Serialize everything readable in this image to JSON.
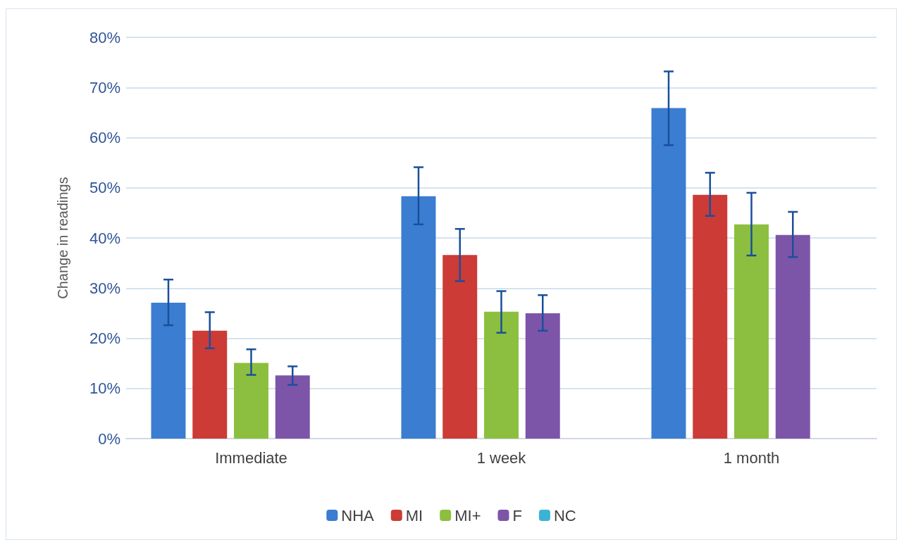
{
  "chart_data": {
    "type": "bar",
    "ylabel": "Change in readings",
    "categories": [
      "Immediate",
      "1 week",
      "1 month"
    ],
    "series": [
      {
        "name": "NHA",
        "color": "#3a7dd1",
        "values": [
          27.1,
          48.3,
          65.9
        ],
        "errors": [
          [
            22.6,
            31.7
          ],
          [
            42.7,
            54.1
          ],
          [
            58.5,
            73.2
          ]
        ]
      },
      {
        "name": "MI",
        "color": "#cc3b36",
        "values": [
          21.5,
          36.6,
          48.6
        ],
        "errors": [
          [
            18,
            25.2
          ],
          [
            31.4,
            41.8
          ],
          [
            44.4,
            53
          ]
        ]
      },
      {
        "name": "MI+",
        "color": "#8cbf3f",
        "values": [
          15.1,
          25.3,
          42.7
        ],
        "errors": [
          [
            12.7,
            17.8
          ],
          [
            21.1,
            29.4
          ],
          [
            36.5,
            49
          ]
        ]
      },
      {
        "name": "F",
        "color": "#7d55a8",
        "values": [
          12.6,
          25,
          40.6
        ],
        "errors": [
          [
            10.7,
            14.4
          ],
          [
            21.5,
            28.6
          ],
          [
            36.2,
            45.2
          ]
        ]
      },
      {
        "name": "NC",
        "color": "#3bb3d4",
        "values": [
          null,
          null,
          null
        ]
      }
    ],
    "ylim": [
      0,
      80
    ],
    "yticks": [
      {
        "value": 0,
        "label": "0%"
      },
      {
        "value": 10,
        "label": "10%"
      },
      {
        "value": 20,
        "label": "20%"
      },
      {
        "value": 30,
        "label": "30%"
      },
      {
        "value": 40,
        "label": "40%"
      },
      {
        "value": 50,
        "label": "50%"
      },
      {
        "value": 60,
        "label": "60%"
      },
      {
        "value": 70,
        "label": "70%"
      },
      {
        "value": 80,
        "label": "80%"
      }
    ],
    "grid": "y",
    "legend": "bottom"
  }
}
